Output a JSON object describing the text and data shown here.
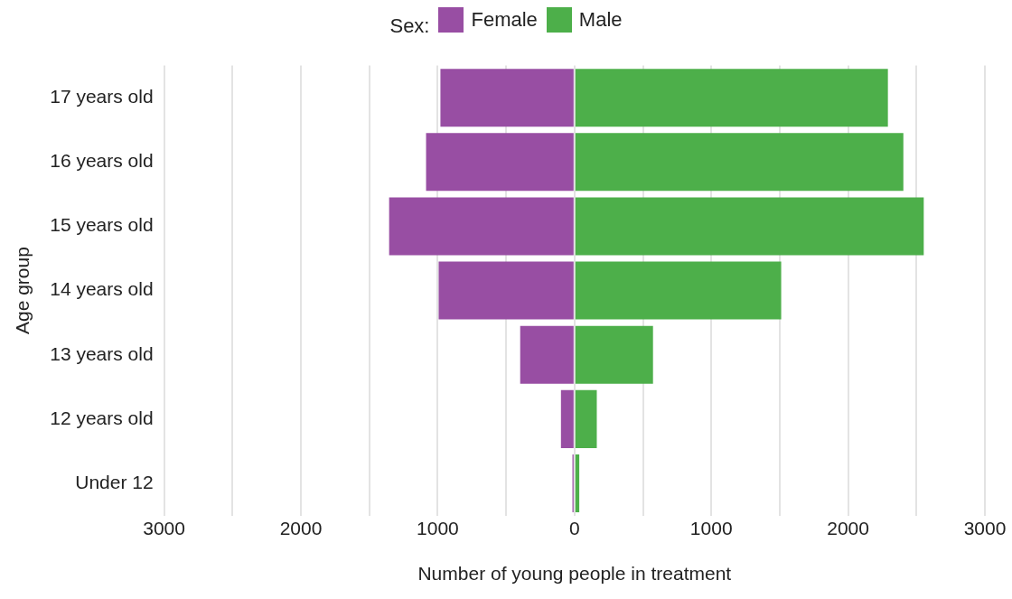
{
  "chart_data": {
    "type": "bar",
    "orientation": "horizontal",
    "stacked": true,
    "categories": [
      "17 years old",
      "16 years old",
      "15 years old",
      "14 years old",
      "13 years old",
      "12 years old",
      "Under 12"
    ],
    "series": [
      {
        "name": "Female",
        "color": "#984ea3",
        "values": [
          -980,
          -1085,
          -1355,
          -993,
          -397,
          -99,
          -15
        ]
      },
      {
        "name": "Male",
        "color": "#4daf4a",
        "values": [
          2291,
          2404,
          2553,
          1511,
          574,
          163,
          35
        ]
      }
    ],
    "xlim": [
      -3000,
      3000
    ],
    "xticks": [
      {
        "value": -3000,
        "label": "3000"
      },
      {
        "value": -2500,
        "label": null
      },
      {
        "value": -2000,
        "label": "2000"
      },
      {
        "value": -1500,
        "label": null
      },
      {
        "value": -1000,
        "label": "1000"
      },
      {
        "value": -500,
        "label": null
      },
      0,
      {
        "value": 500,
        "label": null
      },
      1000,
      {
        "value": 1500,
        "label": null
      },
      2000,
      {
        "value": 2500,
        "label": null
      },
      3000
    ],
    "xlabel": "Number of young people in treatment",
    "ylabel": "Age group",
    "legend_title": "Sex:",
    "legend": "top",
    "grid": "x"
  }
}
